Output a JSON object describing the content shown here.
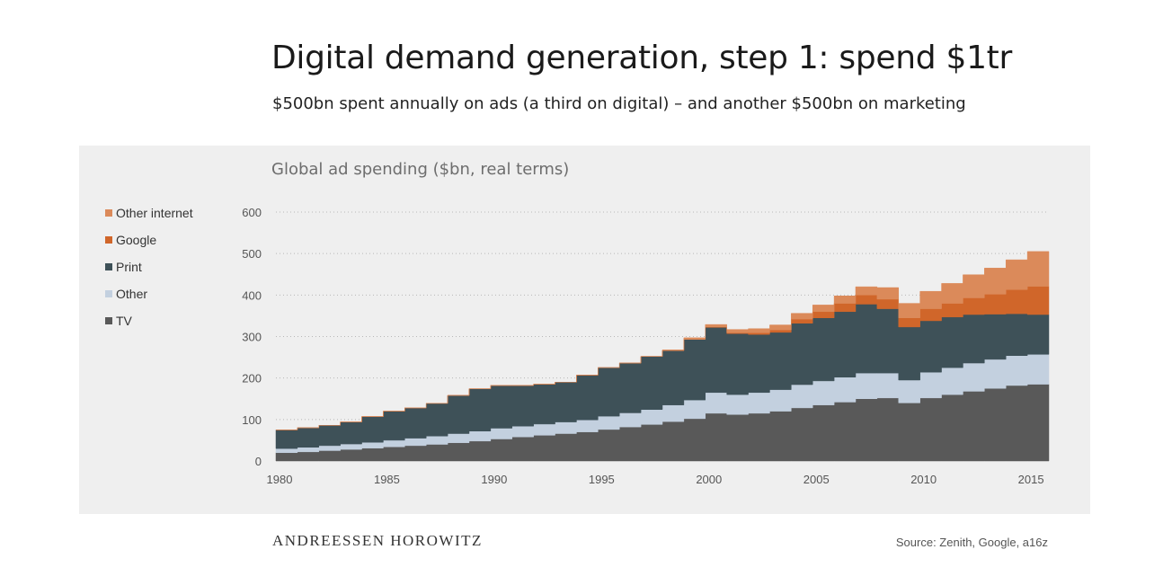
{
  "header": {
    "title": "Digital demand generation, step 1: spend $1tr",
    "subtitle": "$500bn spent annually on ads (a third on digital) – and another $500bn on marketing"
  },
  "footer": {
    "brand": "ANDREESSEN HOROWITZ",
    "source": "Source: Zenith, Google, a16z"
  },
  "colors": {
    "background": "#efefef",
    "tv": "#595959",
    "other": "#c3d0df",
    "print": "#3e5158",
    "google": "#d0662a",
    "other_internet": "#db8a5a",
    "grid": "#b8b8b8"
  },
  "chart_data": {
    "type": "area",
    "stacked": true,
    "step": true,
    "title": "Global ad spending ($bn, real terms)",
    "xlabel": "",
    "ylabel": "",
    "ylim": [
      0,
      600
    ],
    "yticks": [
      0,
      100,
      200,
      300,
      400,
      500,
      600
    ],
    "xticks": [
      1980,
      1985,
      1990,
      1995,
      2000,
      2005,
      2010,
      2015
    ],
    "grid": "horizontal dotted",
    "legend_position": "left",
    "legend": [
      "Other internet",
      "Google",
      "Print",
      "Other",
      "TV"
    ],
    "x": [
      1980,
      1981,
      1982,
      1983,
      1984,
      1985,
      1986,
      1987,
      1988,
      1989,
      1990,
      1991,
      1992,
      1993,
      1994,
      1995,
      1996,
      1997,
      1998,
      1999,
      2000,
      2001,
      2002,
      2003,
      2004,
      2005,
      2006,
      2007,
      2008,
      2009,
      2010,
      2011,
      2012,
      2013,
      2014,
      2015
    ],
    "series": [
      {
        "name": "TV",
        "color": "#595959",
        "values": [
          20,
          22,
          25,
          28,
          31,
          34,
          37,
          40,
          44,
          48,
          53,
          58,
          62,
          66,
          70,
          76,
          82,
          88,
          95,
          102,
          115,
          112,
          115,
          120,
          128,
          135,
          142,
          150,
          152,
          140,
          152,
          160,
          168,
          175,
          182,
          185
        ]
      },
      {
        "name": "Other",
        "color": "#c3d0df",
        "values": [
          10,
          11,
          12,
          13,
          14,
          16,
          18,
          20,
          22,
          24,
          26,
          26,
          27,
          28,
          29,
          32,
          34,
          36,
          40,
          45,
          50,
          48,
          50,
          52,
          56,
          58,
          60,
          62,
          60,
          55,
          62,
          65,
          68,
          70,
          72,
          72
        ]
      },
      {
        "name": "Print",
        "color": "#3e5158",
        "values": [
          45,
          47,
          49,
          53,
          62,
          70,
          73,
          79,
          92,
          102,
          103,
          98,
          96,
          96,
          108,
          117,
          120,
          128,
          131,
          146,
          157,
          147,
          140,
          138,
          148,
          152,
          158,
          166,
          155,
          128,
          124,
          122,
          117,
          109,
          101,
          96
        ]
      },
      {
        "name": "Google",
        "color": "#d0662a",
        "values": [
          0,
          0,
          0,
          0,
          0,
          0,
          0,
          0,
          0,
          0,
          0,
          0,
          0,
          0,
          0,
          0,
          0,
          0,
          0,
          0,
          1,
          2,
          4,
          6,
          10,
          15,
          20,
          22,
          23,
          22,
          29,
          33,
          40,
          48,
          58,
          68
        ]
      },
      {
        "name": "Other internet",
        "color": "#db8a5a",
        "values": [
          0,
          0,
          0,
          0,
          0,
          0,
          0,
          0,
          0,
          0,
          0,
          0,
          0,
          0,
          0,
          0,
          0,
          0,
          2,
          4,
          6,
          8,
          10,
          12,
          14,
          16,
          18,
          20,
          28,
          35,
          42,
          48,
          56,
          63,
          72,
          84
        ]
      }
    ]
  }
}
